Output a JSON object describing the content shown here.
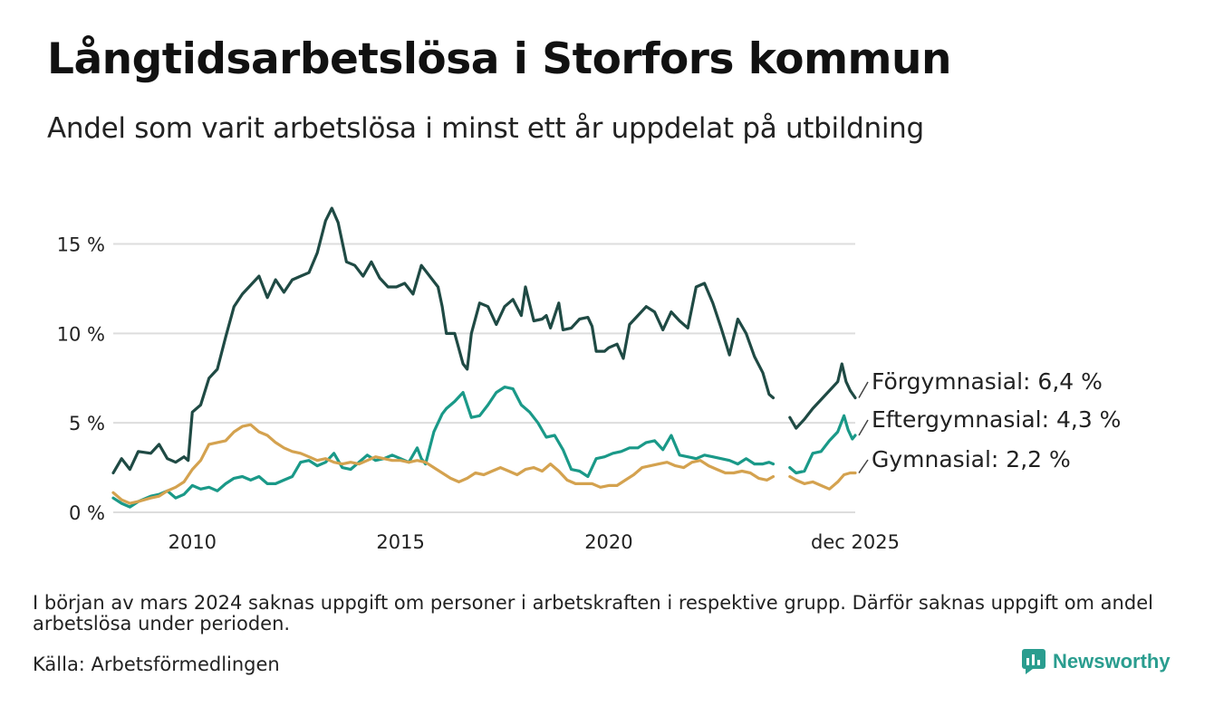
{
  "title": "Långtidsarbetslösa i Storfors kommun",
  "subtitle": "Andel som varit arbetslösa i minst ett år uppdelat på utbildning",
  "note": "I början av mars 2024 saknas uppgift om personer i arbetskraften i respektive grupp. Därför saknas uppgift om andel arbetslösa under perioden.",
  "source": "Källa: Arbetsförmedlingen",
  "brand": {
    "name": "Newsworthy",
    "icon": "newsworthy-logo-icon",
    "color": "#2a9d8f"
  },
  "chart_data": {
    "type": "line",
    "x_unit": "year (decimal)",
    "xlim": [
      2008.1,
      2025.92
    ],
    "ylim": [
      0,
      17
    ],
    "y_ticks": [
      0,
      5,
      10,
      15
    ],
    "y_tick_labels": [
      "0 %",
      "5 %",
      "10 %",
      "15 %"
    ],
    "x_ticks": [
      2010,
      2015,
      2020,
      2025.92
    ],
    "x_tick_labels": [
      "2010",
      "2015",
      "2020",
      "dec 2025"
    ],
    "gridlines": true,
    "gap": [
      2024.0,
      2024.35
    ],
    "series": [
      {
        "name": "Förgymnasial",
        "label": "Förgymnasial: 6,4 %",
        "color": "#1f4a44",
        "points": [
          [
            2008.1,
            2.2
          ],
          [
            2008.3,
            3.0
          ],
          [
            2008.5,
            2.4
          ],
          [
            2008.7,
            3.4
          ],
          [
            2009.0,
            3.3
          ],
          [
            2009.2,
            3.8
          ],
          [
            2009.4,
            3.0
          ],
          [
            2009.6,
            2.8
          ],
          [
            2009.8,
            3.1
          ],
          [
            2009.9,
            2.9
          ],
          [
            2010.0,
            5.6
          ],
          [
            2010.2,
            6.0
          ],
          [
            2010.4,
            7.5
          ],
          [
            2010.6,
            8.0
          ],
          [
            2010.8,
            9.8
          ],
          [
            2011.0,
            11.5
          ],
          [
            2011.2,
            12.2
          ],
          [
            2011.4,
            12.7
          ],
          [
            2011.6,
            13.2
          ],
          [
            2011.8,
            12.0
          ],
          [
            2012.0,
            13.0
          ],
          [
            2012.2,
            12.3
          ],
          [
            2012.4,
            13.0
          ],
          [
            2012.6,
            13.2
          ],
          [
            2012.8,
            13.4
          ],
          [
            2013.0,
            14.5
          ],
          [
            2013.2,
            16.3
          ],
          [
            2013.35,
            17.0
          ],
          [
            2013.5,
            16.2
          ],
          [
            2013.7,
            14.0
          ],
          [
            2013.9,
            13.8
          ],
          [
            2014.1,
            13.2
          ],
          [
            2014.3,
            14.0
          ],
          [
            2014.5,
            13.1
          ],
          [
            2014.7,
            12.6
          ],
          [
            2014.9,
            12.6
          ],
          [
            2015.1,
            12.8
          ],
          [
            2015.3,
            12.2
          ],
          [
            2015.5,
            13.8
          ],
          [
            2015.7,
            13.2
          ],
          [
            2015.9,
            12.6
          ],
          [
            2016.0,
            11.5
          ],
          [
            2016.1,
            10.0
          ],
          [
            2016.3,
            10.0
          ],
          [
            2016.5,
            8.3
          ],
          [
            2016.6,
            8.0
          ],
          [
            2016.7,
            10.0
          ],
          [
            2016.9,
            11.7
          ],
          [
            2017.1,
            11.5
          ],
          [
            2017.3,
            10.5
          ],
          [
            2017.5,
            11.5
          ],
          [
            2017.7,
            11.9
          ],
          [
            2017.9,
            11.0
          ],
          [
            2018.0,
            12.6
          ],
          [
            2018.2,
            10.7
          ],
          [
            2018.4,
            10.8
          ],
          [
            2018.5,
            11.0
          ],
          [
            2018.6,
            10.3
          ],
          [
            2018.8,
            11.7
          ],
          [
            2018.9,
            10.2
          ],
          [
            2019.1,
            10.3
          ],
          [
            2019.3,
            10.8
          ],
          [
            2019.5,
            10.9
          ],
          [
            2019.6,
            10.4
          ],
          [
            2019.7,
            9.0
          ],
          [
            2019.9,
            9.0
          ],
          [
            2020.0,
            9.2
          ],
          [
            2020.2,
            9.4
          ],
          [
            2020.35,
            8.6
          ],
          [
            2020.5,
            10.5
          ],
          [
            2020.7,
            11.0
          ],
          [
            2020.9,
            11.5
          ],
          [
            2021.1,
            11.2
          ],
          [
            2021.3,
            10.2
          ],
          [
            2021.5,
            11.2
          ],
          [
            2021.7,
            10.7
          ],
          [
            2021.9,
            10.3
          ],
          [
            2022.1,
            12.6
          ],
          [
            2022.3,
            12.8
          ],
          [
            2022.5,
            11.7
          ],
          [
            2022.7,
            10.3
          ],
          [
            2022.9,
            8.8
          ],
          [
            2023.1,
            10.8
          ],
          [
            2023.3,
            10.0
          ],
          [
            2023.5,
            8.7
          ],
          [
            2023.7,
            7.8
          ],
          [
            2023.85,
            6.6
          ],
          [
            2023.95,
            6.4
          ],
          [
            2024.35,
            5.3
          ],
          [
            2024.5,
            4.7
          ],
          [
            2024.7,
            5.2
          ],
          [
            2024.9,
            5.8
          ],
          [
            2025.1,
            6.3
          ],
          [
            2025.3,
            6.8
          ],
          [
            2025.5,
            7.3
          ],
          [
            2025.6,
            8.3
          ],
          [
            2025.7,
            7.3
          ],
          [
            2025.8,
            6.8
          ],
          [
            2025.92,
            6.4
          ]
        ]
      },
      {
        "name": "Eftergymnasial",
        "label": "Eftergymnasial: 4,3 %",
        "color": "#1a9988",
        "points": [
          [
            2008.1,
            0.8
          ],
          [
            2008.3,
            0.5
          ],
          [
            2008.5,
            0.3
          ],
          [
            2008.7,
            0.6
          ],
          [
            2009.0,
            0.9
          ],
          [
            2009.2,
            1.0
          ],
          [
            2009.4,
            1.2
          ],
          [
            2009.6,
            0.8
          ],
          [
            2009.8,
            1.0
          ],
          [
            2010.0,
            1.5
          ],
          [
            2010.2,
            1.3
          ],
          [
            2010.4,
            1.4
          ],
          [
            2010.6,
            1.2
          ],
          [
            2010.8,
            1.6
          ],
          [
            2011.0,
            1.9
          ],
          [
            2011.2,
            2.0
          ],
          [
            2011.4,
            1.8
          ],
          [
            2011.6,
            2.0
          ],
          [
            2011.8,
            1.6
          ],
          [
            2012.0,
            1.6
          ],
          [
            2012.2,
            1.8
          ],
          [
            2012.4,
            2.0
          ],
          [
            2012.6,
            2.8
          ],
          [
            2012.8,
            2.9
          ],
          [
            2013.0,
            2.6
          ],
          [
            2013.2,
            2.8
          ],
          [
            2013.4,
            3.3
          ],
          [
            2013.6,
            2.5
          ],
          [
            2013.8,
            2.4
          ],
          [
            2014.0,
            2.8
          ],
          [
            2014.2,
            3.2
          ],
          [
            2014.4,
            2.9
          ],
          [
            2014.6,
            3.0
          ],
          [
            2014.8,
            3.2
          ],
          [
            2015.0,
            3.0
          ],
          [
            2015.2,
            2.8
          ],
          [
            2015.4,
            3.6
          ],
          [
            2015.5,
            3.0
          ],
          [
            2015.6,
            2.7
          ],
          [
            2015.8,
            4.5
          ],
          [
            2016.0,
            5.5
          ],
          [
            2016.1,
            5.8
          ],
          [
            2016.3,
            6.2
          ],
          [
            2016.5,
            6.7
          ],
          [
            2016.7,
            5.3
          ],
          [
            2016.9,
            5.4
          ],
          [
            2017.1,
            6.0
          ],
          [
            2017.3,
            6.7
          ],
          [
            2017.5,
            7.0
          ],
          [
            2017.7,
            6.9
          ],
          [
            2017.9,
            6.0
          ],
          [
            2018.1,
            5.6
          ],
          [
            2018.3,
            5.0
          ],
          [
            2018.5,
            4.2
          ],
          [
            2018.7,
            4.3
          ],
          [
            2018.9,
            3.5
          ],
          [
            2019.1,
            2.4
          ],
          [
            2019.3,
            2.3
          ],
          [
            2019.5,
            2.0
          ],
          [
            2019.7,
            3.0
          ],
          [
            2019.9,
            3.1
          ],
          [
            2020.1,
            3.3
          ],
          [
            2020.3,
            3.4
          ],
          [
            2020.5,
            3.6
          ],
          [
            2020.7,
            3.6
          ],
          [
            2020.9,
            3.9
          ],
          [
            2021.1,
            4.0
          ],
          [
            2021.3,
            3.5
          ],
          [
            2021.5,
            4.3
          ],
          [
            2021.7,
            3.2
          ],
          [
            2021.9,
            3.1
          ],
          [
            2022.1,
            3.0
          ],
          [
            2022.3,
            3.2
          ],
          [
            2022.5,
            3.1
          ],
          [
            2022.7,
            3.0
          ],
          [
            2022.9,
            2.9
          ],
          [
            2023.1,
            2.7
          ],
          [
            2023.3,
            3.0
          ],
          [
            2023.5,
            2.7
          ],
          [
            2023.7,
            2.7
          ],
          [
            2023.85,
            2.8
          ],
          [
            2023.95,
            2.7
          ],
          [
            2024.35,
            2.5
          ],
          [
            2024.5,
            2.2
          ],
          [
            2024.7,
            2.3
          ],
          [
            2024.9,
            3.3
          ],
          [
            2025.1,
            3.4
          ],
          [
            2025.3,
            4.0
          ],
          [
            2025.5,
            4.5
          ],
          [
            2025.65,
            5.4
          ],
          [
            2025.75,
            4.6
          ],
          [
            2025.85,
            4.1
          ],
          [
            2025.92,
            4.3
          ]
        ]
      },
      {
        "name": "Gymnasial",
        "label": "Gymnasial: 2,2 %",
        "color": "#d4a24f",
        "points": [
          [
            2008.1,
            1.1
          ],
          [
            2008.3,
            0.7
          ],
          [
            2008.5,
            0.5
          ],
          [
            2008.7,
            0.6
          ],
          [
            2009.0,
            0.8
          ],
          [
            2009.2,
            0.9
          ],
          [
            2009.4,
            1.2
          ],
          [
            2009.6,
            1.4
          ],
          [
            2009.8,
            1.7
          ],
          [
            2010.0,
            2.4
          ],
          [
            2010.2,
            2.9
          ],
          [
            2010.4,
            3.8
          ],
          [
            2010.6,
            3.9
          ],
          [
            2010.8,
            4.0
          ],
          [
            2011.0,
            4.5
          ],
          [
            2011.2,
            4.8
          ],
          [
            2011.4,
            4.9
          ],
          [
            2011.6,
            4.5
          ],
          [
            2011.8,
            4.3
          ],
          [
            2012.0,
            3.9
          ],
          [
            2012.2,
            3.6
          ],
          [
            2012.4,
            3.4
          ],
          [
            2012.6,
            3.3
          ],
          [
            2012.8,
            3.1
          ],
          [
            2013.0,
            2.9
          ],
          [
            2013.2,
            3.0
          ],
          [
            2013.4,
            2.8
          ],
          [
            2013.6,
            2.7
          ],
          [
            2013.8,
            2.8
          ],
          [
            2014.0,
            2.7
          ],
          [
            2014.2,
            2.9
          ],
          [
            2014.4,
            3.1
          ],
          [
            2014.6,
            3.0
          ],
          [
            2014.8,
            2.9
          ],
          [
            2015.0,
            2.9
          ],
          [
            2015.2,
            2.8
          ],
          [
            2015.4,
            2.9
          ],
          [
            2015.6,
            2.8
          ],
          [
            2015.8,
            2.5
          ],
          [
            2016.0,
            2.2
          ],
          [
            2016.2,
            1.9
          ],
          [
            2016.4,
            1.7
          ],
          [
            2016.6,
            1.9
          ],
          [
            2016.8,
            2.2
          ],
          [
            2017.0,
            2.1
          ],
          [
            2017.2,
            2.3
          ],
          [
            2017.4,
            2.5
          ],
          [
            2017.6,
            2.3
          ],
          [
            2017.8,
            2.1
          ],
          [
            2018.0,
            2.4
          ],
          [
            2018.2,
            2.5
          ],
          [
            2018.4,
            2.3
          ],
          [
            2018.6,
            2.7
          ],
          [
            2018.8,
            2.3
          ],
          [
            2019.0,
            1.8
          ],
          [
            2019.2,
            1.6
          ],
          [
            2019.4,
            1.6
          ],
          [
            2019.6,
            1.6
          ],
          [
            2019.8,
            1.4
          ],
          [
            2020.0,
            1.5
          ],
          [
            2020.2,
            1.5
          ],
          [
            2020.4,
            1.8
          ],
          [
            2020.6,
            2.1
          ],
          [
            2020.8,
            2.5
          ],
          [
            2021.0,
            2.6
          ],
          [
            2021.2,
            2.7
          ],
          [
            2021.4,
            2.8
          ],
          [
            2021.6,
            2.6
          ],
          [
            2021.8,
            2.5
          ],
          [
            2022.0,
            2.8
          ],
          [
            2022.2,
            2.9
          ],
          [
            2022.4,
            2.6
          ],
          [
            2022.6,
            2.4
          ],
          [
            2022.8,
            2.2
          ],
          [
            2023.0,
            2.2
          ],
          [
            2023.2,
            2.3
          ],
          [
            2023.4,
            2.2
          ],
          [
            2023.6,
            1.9
          ],
          [
            2023.8,
            1.8
          ],
          [
            2023.95,
            2.0
          ],
          [
            2024.35,
            2.0
          ],
          [
            2024.5,
            1.8
          ],
          [
            2024.7,
            1.6
          ],
          [
            2024.9,
            1.7
          ],
          [
            2025.1,
            1.5
          ],
          [
            2025.3,
            1.3
          ],
          [
            2025.5,
            1.7
          ],
          [
            2025.65,
            2.1
          ],
          [
            2025.8,
            2.2
          ],
          [
            2025.92,
            2.2
          ]
        ]
      }
    ]
  }
}
